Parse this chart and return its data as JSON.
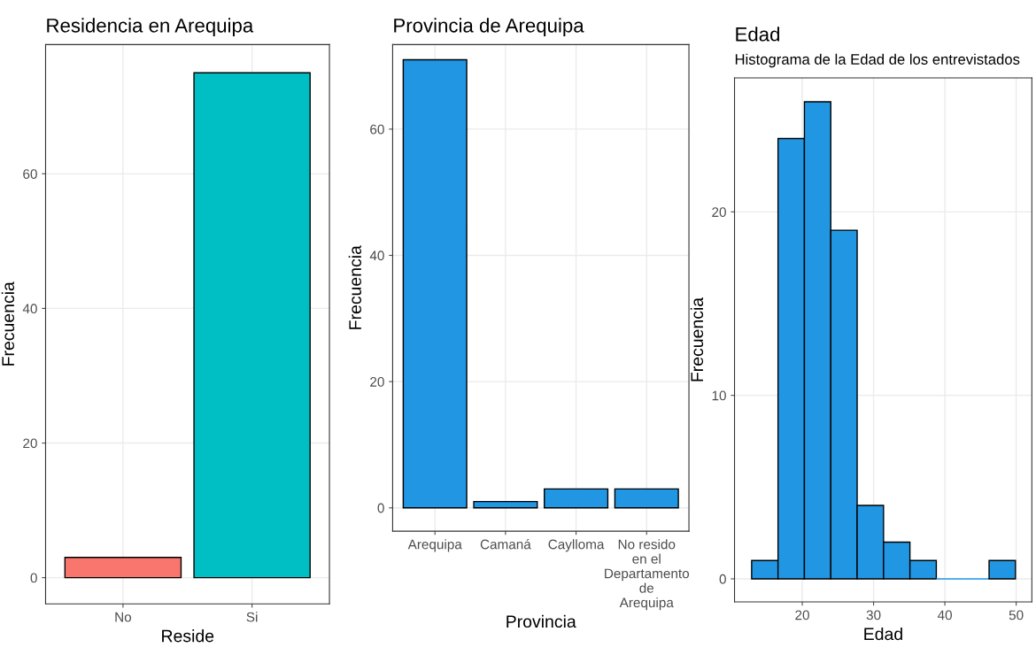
{
  "chart_data": [
    {
      "type": "bar",
      "title": "Residencia en Arequipa",
      "xlabel": "Reside",
      "ylabel": "Frecuencia",
      "categories": [
        "No",
        "Si"
      ],
      "values": [
        3,
        75
      ],
      "colors": [
        "#f8766d",
        "#00bfc4"
      ],
      "ylim": [
        -3.9,
        79.2
      ],
      "yticks": [
        0,
        20,
        40,
        60
      ],
      "grid": true
    },
    {
      "type": "bar",
      "title": "Provincia de Arequipa",
      "xlabel": "Provincia",
      "ylabel": "Frecuencia",
      "categories": [
        "Arequipa",
        "Camaná",
        "Caylloma",
        "No resido\nen el\nDepartamento\nde\nArequipa"
      ],
      "values": [
        71,
        1,
        3,
        3
      ],
      "color": "#2196e3",
      "ylim": [
        -3.7,
        73.4
      ],
      "yticks": [
        0,
        20,
        40,
        60
      ],
      "grid": true
    },
    {
      "type": "histogram",
      "title": "Edad",
      "subtitle": "Histograma de la Edad de los entrevistados",
      "xlabel": "Edad",
      "ylabel": "Frecuencia",
      "bins": [
        12.9,
        16.6,
        20.3,
        24.0,
        27.7,
        31.4,
        35.1,
        38.8,
        42.5,
        46.2,
        49.9
      ],
      "values": [
        1,
        24,
        26,
        19,
        4,
        2,
        1,
        0,
        0,
        1
      ],
      "color": "#2196e3",
      "xlim": [
        10.5,
        52.2
      ],
      "xticks": [
        20,
        30,
        40,
        50
      ],
      "ylim": [
        -1.26,
        27.3
      ],
      "yticks": [
        0,
        10,
        20
      ],
      "grid": true
    }
  ]
}
